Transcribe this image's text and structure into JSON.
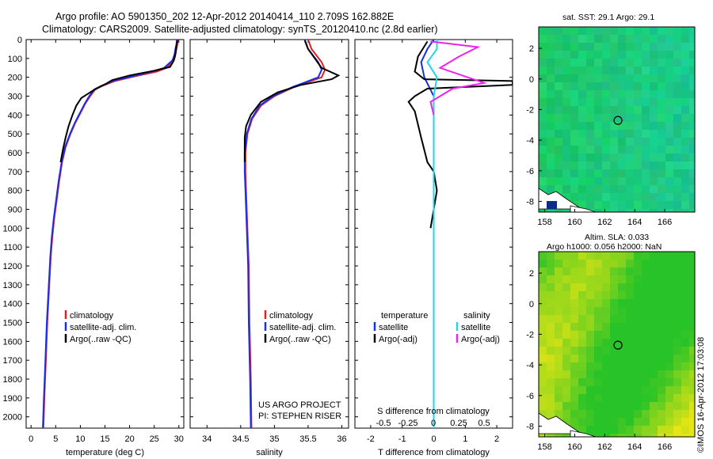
{
  "header": {
    "line1": "Argo profile: AO 5901350_202 12-Apr-2012 20140414_110 2.709S 162.882E",
    "line2": "Climatology: CARS2009. Satellite-adjusted climatology: synTS_20120410.nc (2.8d earlier)"
  },
  "maps": {
    "sst_title": "sat. SST: 29.1  Argo: 29.1",
    "sla_title1": "Altim. SLA: 0.033",
    "sla_title2": "Argo h1000: 0.056 h2000: NaN",
    "x_ticks": [
      "158",
      "160",
      "162",
      "164",
      "166"
    ],
    "y_ticks": [
      "2",
      "0",
      "-2",
      "-4",
      "-6",
      "-8"
    ],
    "marker": {
      "lon": 162.882,
      "lat": -2.709
    }
  },
  "stamp": "©IMOS 16-Apr-2012 17:03:08",
  "colors": {
    "climatology": "#e02020",
    "satellite": "#1a2ee6",
    "argo": "#000000",
    "sal_satellite": "#22d6e6",
    "sal_argo": "#ee22ee"
  },
  "chart_data": [
    {
      "type": "line",
      "xlabel": "temperature (deg C)",
      "ylabel": "",
      "xlim": [
        -1,
        31
      ],
      "ylim": [
        2060,
        0
      ],
      "x_ticks": [
        0,
        5,
        10,
        15,
        20,
        25,
        30
      ],
      "y_ticks": [
        0,
        100,
        200,
        300,
        400,
        500,
        600,
        700,
        800,
        900,
        1000,
        1100,
        1200,
        1300,
        1400,
        1500,
        1600,
        1700,
        1800,
        1900,
        2000
      ],
      "legend": [
        "climatology",
        "satellite-adj. clim.",
        "Argo(..raw -QC)"
      ],
      "series": [
        {
          "name": "climatology",
          "points": [
            [
              29.8,
              0
            ],
            [
              29.7,
              25
            ],
            [
              29.5,
              50
            ],
            [
              29.3,
              80
            ],
            [
              29.0,
              110
            ],
            [
              27.5,
              150
            ],
            [
              25.5,
              170
            ],
            [
              21,
              195
            ],
            [
              17,
              220
            ],
            [
              14.5,
              245
            ],
            [
              13,
              265
            ],
            [
              12,
              300
            ],
            [
              11,
              340
            ],
            [
              10,
              390
            ],
            [
              9,
              440
            ],
            [
              8,
              500
            ],
            [
              7,
              570
            ],
            [
              6.3,
              650
            ],
            [
              5.7,
              750
            ],
            [
              5.2,
              850
            ],
            [
              4.7,
              950
            ],
            [
              4.3,
              1050
            ],
            [
              4.0,
              1150
            ],
            [
              3.7,
              1300
            ],
            [
              3.3,
              1500
            ],
            [
              3.0,
              1700
            ],
            [
              2.7,
              1900
            ],
            [
              2.5,
              2060
            ]
          ]
        },
        {
          "name": "satellite-adj. clim.",
          "points": [
            [
              29.6,
              0
            ],
            [
              29.5,
              25
            ],
            [
              29.3,
              50
            ],
            [
              29.1,
              80
            ],
            [
              28.7,
              110
            ],
            [
              27,
              150
            ],
            [
              24.5,
              170
            ],
            [
              20.5,
              195
            ],
            [
              16.5,
              220
            ],
            [
              14.3,
              245
            ],
            [
              12.8,
              265
            ],
            [
              11.8,
              300
            ],
            [
              10.9,
              340
            ],
            [
              9.9,
              390
            ],
            [
              8.9,
              440
            ],
            [
              7.9,
              500
            ],
            [
              6.9,
              570
            ],
            [
              6.2,
              650
            ],
            [
              5.6,
              750
            ],
            [
              5.1,
              850
            ],
            [
              4.6,
              950
            ],
            [
              4.2,
              1050
            ],
            [
              3.9,
              1150
            ],
            [
              3.6,
              1300
            ],
            [
              3.2,
              1500
            ],
            [
              2.9,
              1700
            ],
            [
              2.6,
              1900
            ],
            [
              2.4,
              2060
            ]
          ]
        },
        {
          "name": "Argo(..raw -QC)",
          "points": [
            [
              29.7,
              5
            ],
            [
              29.5,
              30
            ],
            [
              29.4,
              60
            ],
            [
              29.2,
              90
            ],
            [
              28.8,
              120
            ],
            [
              28.2,
              145
            ],
            [
              25,
              165
            ],
            [
              20,
              190
            ],
            [
              16.5,
              215
            ],
            [
              14.8,
              240
            ],
            [
              13.2,
              260
            ],
            [
              12,
              280
            ],
            [
              10.2,
              310
            ],
            [
              9.2,
              350
            ],
            [
              8.4,
              400
            ],
            [
              7.6,
              460
            ],
            [
              7.0,
              520
            ],
            [
              6.5,
              580
            ],
            [
              6.0,
              650
            ]
          ]
        }
      ]
    },
    {
      "type": "line",
      "xlabel": "salinity",
      "ylabel": "",
      "xlim": [
        33.75,
        36.1
      ],
      "ylim": [
        2060,
        0
      ],
      "x_ticks": [
        34,
        34.5,
        35,
        35.5,
        36
      ],
      "legend": [
        "climatology",
        "satellite-adj. clim.",
        "Argo(..raw -QC)"
      ],
      "annotation": [
        "US ARGO PROJECT",
        "PI: STEPHEN RISER"
      ],
      "series": [
        {
          "name": "climatology",
          "points": [
            [
              35.5,
              0
            ],
            [
              35.55,
              50
            ],
            [
              35.7,
              120
            ],
            [
              35.75,
              160
            ],
            [
              35.7,
              200
            ],
            [
              35.3,
              250
            ],
            [
              35.0,
              300
            ],
            [
              34.8,
              350
            ],
            [
              34.67,
              420
            ],
            [
              34.6,
              500
            ],
            [
              34.57,
              600
            ],
            [
              34.57,
              700
            ],
            [
              34.58,
              800
            ],
            [
              34.6,
              1000
            ],
            [
              34.62,
              1200
            ],
            [
              34.63,
              1500
            ],
            [
              34.65,
              1800
            ],
            [
              34.66,
              2060
            ]
          ]
        },
        {
          "name": "satellite-adj. clim.",
          "points": [
            [
              35.45,
              0
            ],
            [
              35.5,
              50
            ],
            [
              35.65,
              120
            ],
            [
              35.7,
              160
            ],
            [
              35.65,
              200
            ],
            [
              35.28,
              250
            ],
            [
              34.98,
              300
            ],
            [
              34.78,
              350
            ],
            [
              34.66,
              420
            ],
            [
              34.59,
              500
            ],
            [
              34.56,
              600
            ],
            [
              34.56,
              700
            ],
            [
              34.57,
              800
            ],
            [
              34.59,
              1000
            ],
            [
              34.61,
              1200
            ],
            [
              34.62,
              1500
            ],
            [
              34.64,
              1800
            ],
            [
              34.65,
              2060
            ]
          ]
        },
        {
          "name": "Argo(..raw -QC)",
          "points": [
            [
              35.45,
              5
            ],
            [
              35.5,
              50
            ],
            [
              35.6,
              100
            ],
            [
              35.7,
              150
            ],
            [
              35.95,
              190
            ],
            [
              35.85,
              210
            ],
            [
              35.4,
              240
            ],
            [
              35.05,
              280
            ],
            [
              34.8,
              330
            ],
            [
              34.65,
              400
            ],
            [
              34.58,
              460
            ],
            [
              34.56,
              520
            ],
            [
              34.56,
              580
            ],
            [
              34.56,
              650
            ]
          ]
        }
      ]
    },
    {
      "type": "line",
      "xlabel": "T difference from climatology",
      "title": "S difference from climatology",
      "xlim": [
        -2.5,
        2.5
      ],
      "ylim": [
        2060,
        0
      ],
      "x_ticks": [
        -2,
        -1,
        0,
        1,
        2
      ],
      "x2_ticks": [
        "-0.5",
        "-0.25",
        "0",
        "0.25",
        "0.5"
      ],
      "legend": {
        "temperature": [
          "temperature",
          "satellite",
          "Argo(-adj)"
        ],
        "salinity": [
          "salinity",
          "satellite",
          "Argo(-adj)"
        ]
      },
      "series": [
        {
          "name": "temperature satellite",
          "points": [
            [
              0,
              0
            ],
            [
              -0.2,
              50
            ],
            [
              -0.4,
              120
            ],
            [
              -0.3,
              200
            ],
            [
              0,
              300
            ],
            [
              0,
              2060
            ]
          ]
        },
        {
          "name": "temperature Argo(-adj)",
          "points": [
            [
              -0.2,
              10
            ],
            [
              -0.5,
              90
            ],
            [
              -0.6,
              170
            ],
            [
              -0.3,
              210
            ],
            [
              2.5,
              220
            ],
            [
              2.5,
              240
            ],
            [
              -0.2,
              260
            ],
            [
              -0.6,
              300
            ],
            [
              -0.8,
              330
            ],
            [
              -0.6,
              380
            ],
            [
              -0.4,
              520
            ],
            [
              -0.2,
              650
            ],
            [
              0,
              700
            ],
            [
              0.1,
              800
            ],
            [
              0,
              900
            ],
            [
              -0.1,
              1000
            ]
          ]
        },
        {
          "name": "salinity satellite",
          "points": [
            [
              0.1,
              0
            ],
            [
              0.1,
              50
            ],
            [
              -0.2,
              120
            ],
            [
              0.1,
              200
            ],
            [
              0,
              300
            ],
            [
              0,
              2060
            ]
          ]
        },
        {
          "name": "salinity Argo(-adj)",
          "points": [
            [
              -0.1,
              10
            ],
            [
              1.4,
              40
            ],
            [
              0.8,
              90
            ],
            [
              0.2,
              150
            ],
            [
              1.6,
              230
            ],
            [
              0.6,
              260
            ],
            [
              -0.1,
              330
            ],
            [
              0,
              400
            ]
          ]
        }
      ]
    }
  ]
}
